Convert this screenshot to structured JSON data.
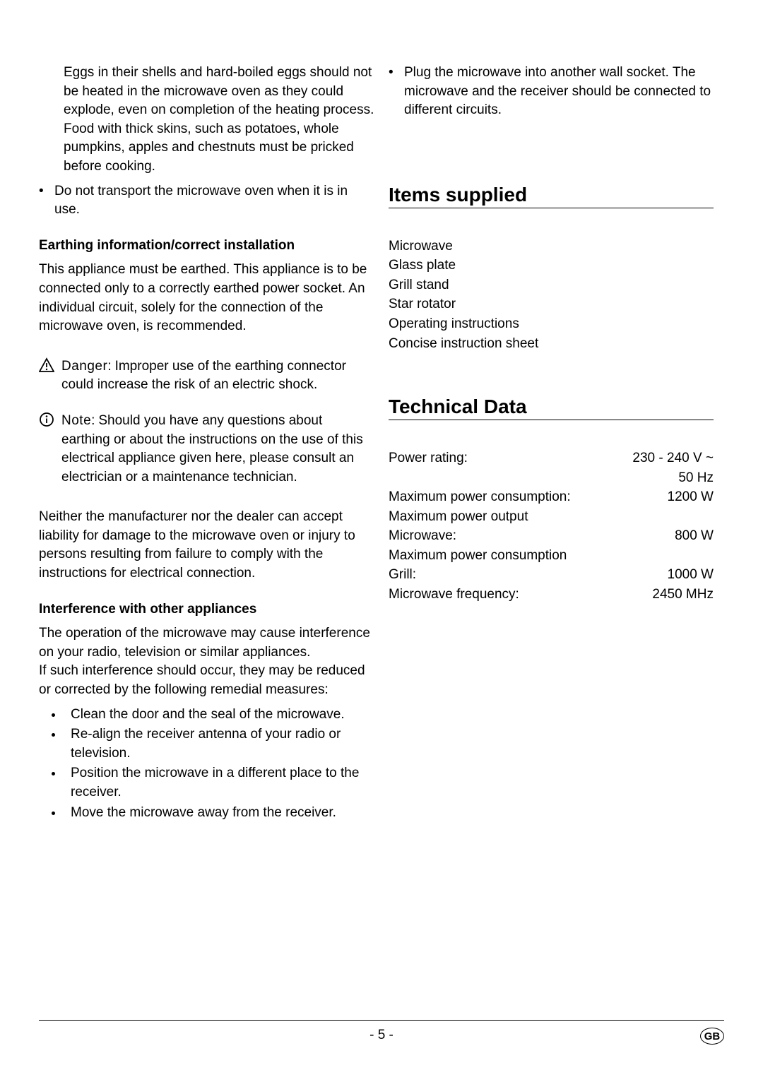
{
  "left": {
    "eggs_para": "Eggs in their shells and hard-boiled eggs should not be heated in the microwave oven as they could explode, even on completion of the heating process. Food with thick skins, such as potatoes, whole pumpkins, apples and chestnuts must be pricked before cooking.",
    "bullet_mark": "•",
    "do_not_transport": "Do not transport the microwave oven when it is in use.",
    "earthing_heading": "Earthing information/correct installation",
    "earthing_para": "This appliance must be earthed. This appliance is to be connected only to a correctly earthed power socket. An individual circuit, solely for the connection of the microwave oven, is recommended.",
    "danger_label": "Danger:",
    "danger_text": "Improper use of the earthing connector could increase the risk of an electric shock.",
    "note_label": "Note:",
    "note_text": "Should you have any questions about earthing or about the instructions on the use of this electrical appliance given here, please consult an electrician or a maintenance technician.",
    "liability_para": "Neither the manufacturer nor the dealer can accept liability for damage to the microwave oven or injury to persons resulting from failure to comply with the instructions for electrical connection.",
    "interference_heading": "Interference with other appliances",
    "interference_para1": "The operation of the microwave may cause interference on your radio, television or similar appliances.",
    "interference_para2": "If such interference should occur, they may be reduced or corrected by the following remedial measures:",
    "interference_bullets": [
      "Clean the door and the seal of the microwave.",
      "Re-align the receiver antenna of your radio or television.",
      "Position the microwave in a different place to the receiver.",
      "Move the microwave away from the receiver."
    ]
  },
  "right": {
    "plug_bullet": "Plug the microwave into another wall socket. The microwave and the receiver should be connected to different circuits.",
    "items_supplied_title": "Items supplied",
    "items_supplied": [
      "Microwave",
      "Glass plate",
      "Grill stand",
      "Star rotator",
      "Operating instructions",
      "Concise instruction sheet"
    ],
    "technical_title": "Technical Data",
    "tech_rows": [
      {
        "label": "Power rating:",
        "value": "230 - 240 V ~"
      },
      {
        "label": "",
        "value": "50 Hz"
      },
      {
        "label": "Maximum power consumption:",
        "value": "1200 W"
      },
      {
        "label": "Maximum power output",
        "value": ""
      },
      {
        "label": "Microwave:",
        "value": "800 W"
      },
      {
        "label": "Maximum power consumption",
        "value": ""
      },
      {
        "label": "Grill:",
        "value": "1000 W"
      },
      {
        "label": "Microwave frequency:",
        "value": "2450 MHz"
      }
    ]
  },
  "footer": {
    "page": "- 5 -",
    "region": "GB"
  },
  "icons": {
    "warning": "warning-triangle-icon",
    "info": "info-circle-icon"
  }
}
